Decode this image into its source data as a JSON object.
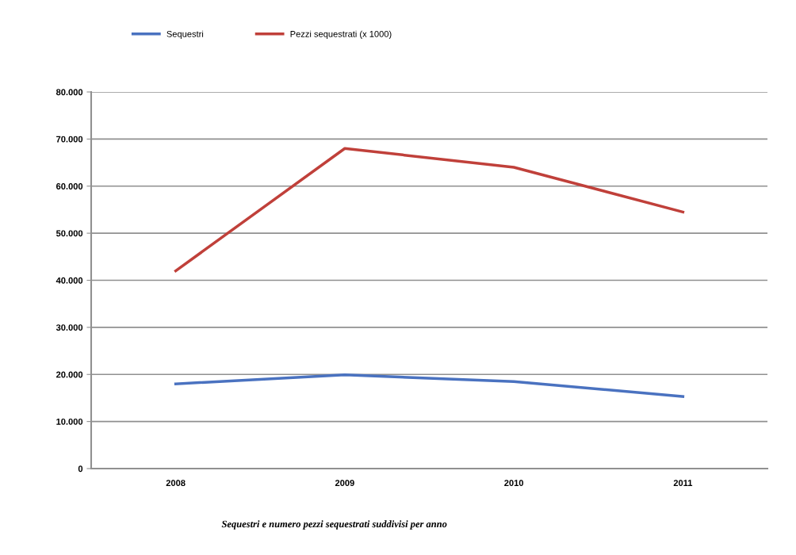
{
  "chart_data": {
    "type": "line",
    "categories": [
      "2008",
      "2009",
      "2010",
      "2011"
    ],
    "series": [
      {
        "name": "Sequestri",
        "color": "#4a72c0",
        "values": [
          18000,
          19900,
          18500,
          15300
        ]
      },
      {
        "name": "Pezzi sequestrati (x 1000)",
        "color": "#c0403a",
        "values": [
          42000,
          68000,
          64000,
          54500
        ]
      }
    ],
    "ylim": [
      0,
      80000
    ],
    "yticks": [
      0,
      {
        "value": 10000,
        "label": "10.000"
      },
      {
        "value": 20000,
        "label": "20.000"
      },
      {
        "value": 30000,
        "label": "30.000"
      },
      {
        "value": 40000,
        "label": "40.000"
      },
      {
        "value": 50000,
        "label": "50.000"
      },
      {
        "value": 60000,
        "label": "60.000"
      },
      {
        "value": 70000,
        "label": "70.000"
      },
      {
        "value": 80000,
        "label": "80.000"
      }
    ],
    "grid": "y",
    "legend": "top",
    "marker": "none",
    "line_style": "solid",
    "annotations": [
      "Sequestri e numero pezzi sequestrati suddivisi per anno"
    ]
  }
}
